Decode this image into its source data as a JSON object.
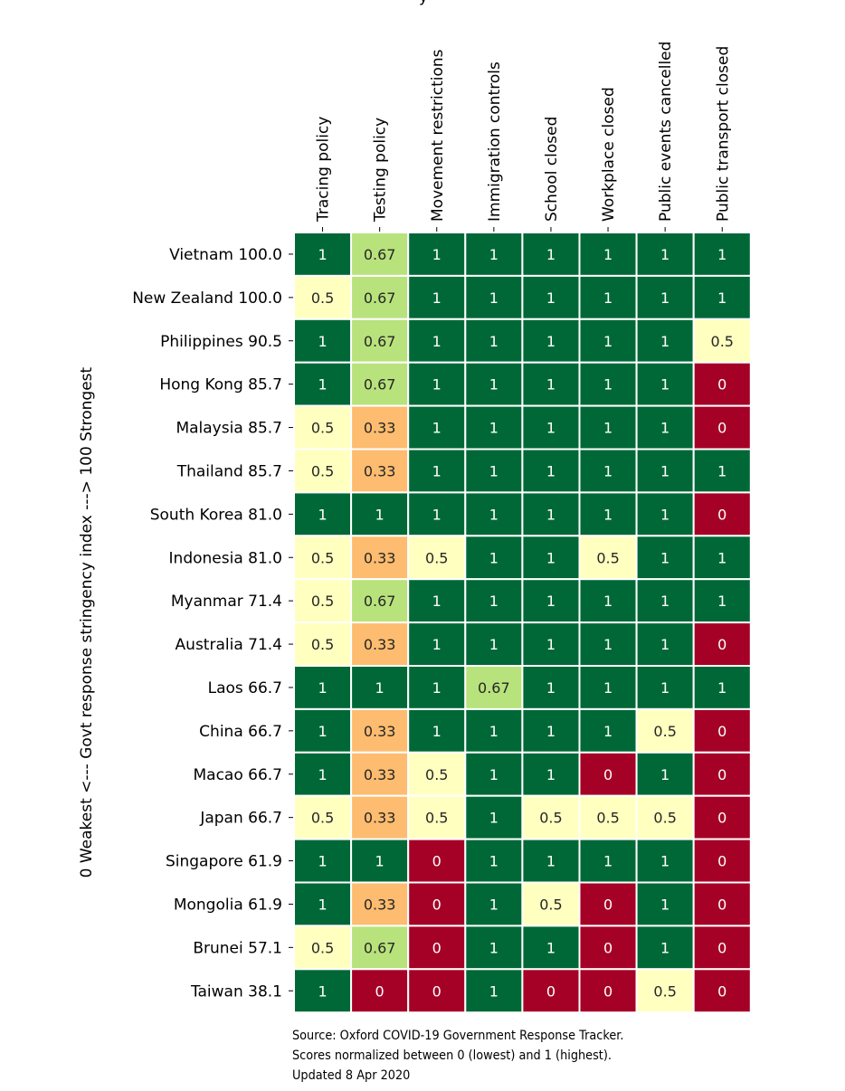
{
  "chart_data": {
    "type": "heatmap",
    "title": "y",
    "ylabel": "0 Weakest <--- Govt response stringency index ---> 100 Strongest",
    "columns": [
      "Tracing policy",
      "Testing policy",
      "Movement restrictions",
      "Immigration controls",
      "School closed",
      "Workplace closed",
      "Public events cancelled",
      "Public transport closed"
    ],
    "rows": [
      "Vietnam 100.0",
      "New Zealand 100.0",
      "Philippines 90.5",
      "Hong Kong 85.7",
      "Malaysia 85.7",
      "Thailand 85.7",
      "South Korea 81.0",
      "Indonesia 81.0",
      "Myanmar 71.4",
      "Australia 71.4",
      "Laos 66.7",
      "China 66.7",
      "Macao 66.7",
      "Japan 66.7",
      "Singapore 61.9",
      "Mongolia 61.9",
      "Brunei 57.1",
      "Taiwan 38.1"
    ],
    "values": [
      [
        1,
        0.67,
        1,
        1,
        1,
        1,
        1,
        1
      ],
      [
        0.5,
        0.67,
        1,
        1,
        1,
        1,
        1,
        1
      ],
      [
        1,
        0.67,
        1,
        1,
        1,
        1,
        1,
        0.5
      ],
      [
        1,
        0.67,
        1,
        1,
        1,
        1,
        1,
        0
      ],
      [
        0.5,
        0.33,
        1,
        1,
        1,
        1,
        1,
        0
      ],
      [
        0.5,
        0.33,
        1,
        1,
        1,
        1,
        1,
        1
      ],
      [
        1,
        1,
        1,
        1,
        1,
        1,
        1,
        0
      ],
      [
        0.5,
        0.33,
        0.5,
        1,
        1,
        0.5,
        1,
        1
      ],
      [
        0.5,
        0.67,
        1,
        1,
        1,
        1,
        1,
        1
      ],
      [
        0.5,
        0.33,
        1,
        1,
        1,
        1,
        1,
        0
      ],
      [
        1,
        1,
        1,
        0.67,
        1,
        1,
        1,
        1
      ],
      [
        1,
        0.33,
        1,
        1,
        1,
        1,
        0.5,
        0
      ],
      [
        1,
        0.33,
        0.5,
        1,
        1,
        0,
        1,
        0
      ],
      [
        0.5,
        0.33,
        0.5,
        1,
        0.5,
        0.5,
        0.5,
        0
      ],
      [
        1,
        1,
        0,
        1,
        1,
        1,
        1,
        0
      ],
      [
        1,
        0.33,
        0,
        1,
        0.5,
        0,
        1,
        0
      ],
      [
        0.5,
        0.67,
        0,
        1,
        1,
        0,
        1,
        0
      ],
      [
        1,
        0,
        0,
        1,
        0,
        0,
        0.5,
        0
      ]
    ],
    "colors": {
      "0": "#a50026",
      "0.33": "#fdbc6f",
      "0.5": "#ffffc0",
      "0.67": "#b8e27c",
      "1": "#006837"
    },
    "label_color_dark": "#ffffff",
    "label_color_light": "#262626",
    "vmin": 0,
    "vmax": 1
  },
  "source_note": {
    "line1": "Source: Oxford COVID-19 Government Response Tracker.",
    "line2": "Scores normalized between 0 (lowest) and 1 (highest).",
    "line3": "Updated 8 Apr 2020"
  }
}
